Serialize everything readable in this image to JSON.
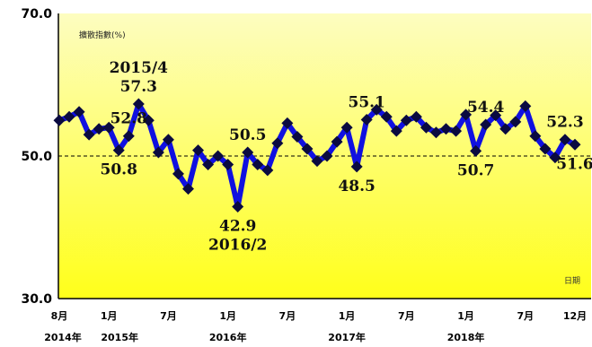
{
  "chart_data": {
    "type": "line",
    "ylabel": "擴散指數(%)",
    "corner_label": "日期",
    "ylim": [
      30,
      70
    ],
    "yticks": [
      "30.0",
      "50.0",
      "70.0"
    ],
    "reference_line": 50,
    "reference_label": "50.0",
    "grid": false,
    "colors": {
      "plot_background_top": "#fdfdc0",
      "plot_background_bottom": "#ffff1a",
      "line": "#1010e0",
      "marker": "#0a0a40",
      "reference_line": "#000000"
    },
    "x": [
      "2014/8",
      "2014/9",
      "2014/10",
      "2014/11",
      "2014/12",
      "2015/1",
      "2015/2",
      "2015/3",
      "2015/4",
      "2015/5",
      "2015/6",
      "2015/7",
      "2015/8",
      "2015/9",
      "2015/10",
      "2015/11",
      "2015/12",
      "2016/1",
      "2016/2",
      "2016/3",
      "2016/4",
      "2016/5",
      "2016/6",
      "2016/7",
      "2016/8",
      "2016/9",
      "2016/10",
      "2016/11",
      "2016/12",
      "2017/1",
      "2017/2",
      "2017/3",
      "2017/4",
      "2017/5",
      "2017/6",
      "2017/7",
      "2017/8",
      "2017/9",
      "2017/10",
      "2017/11",
      "2017/12",
      "2018/1",
      "2018/2",
      "2018/3",
      "2018/4",
      "2018/5",
      "2018/6",
      "2018/7",
      "2018/8",
      "2018/9",
      "2018/10",
      "2018/11",
      "2018/12"
    ],
    "values": [
      55.0,
      55.5,
      56.2,
      53.0,
      53.8,
      54.0,
      50.8,
      52.8,
      57.3,
      55.0,
      50.5,
      52.3,
      47.5,
      45.4,
      50.8,
      48.8,
      50.0,
      48.8,
      42.9,
      50.5,
      48.8,
      48.0,
      51.8,
      54.6,
      52.7,
      51.0,
      49.3,
      50.0,
      52.0,
      54.0,
      48.5,
      55.1,
      56.5,
      55.5,
      53.5,
      55.0,
      55.5,
      54.0,
      53.3,
      53.8,
      53.5,
      55.8,
      50.7,
      54.4,
      55.7,
      53.8,
      54.8,
      57.0,
      52.8,
      51.0,
      49.8,
      52.3,
      51.6
    ],
    "month_ticks": [
      {
        "x": "2014/8",
        "label": "8月"
      },
      {
        "x": "2015/1",
        "label": "1月"
      },
      {
        "x": "2015/7",
        "label": "7月"
      },
      {
        "x": "2016/1",
        "label": "1月"
      },
      {
        "x": "2016/7",
        "label": "7月"
      },
      {
        "x": "2017/1",
        "label": "1月"
      },
      {
        "x": "2017/7",
        "label": "7月"
      },
      {
        "x": "2018/1",
        "label": "1月"
      },
      {
        "x": "2018/7",
        "label": "7月"
      },
      {
        "x": "2018/12",
        "label": "12月"
      }
    ],
    "year_ticks": [
      {
        "x": "2014/8",
        "label": "2014年"
      },
      {
        "x": "2015/1",
        "label": "2015年"
      },
      {
        "x": "2016/1",
        "label": "2016年"
      },
      {
        "x": "2017/1",
        "label": "2017年"
      },
      {
        "x": "2018/1",
        "label": "2018年"
      }
    ],
    "annotations": [
      {
        "x": "2015/4",
        "value": 57.3,
        "lines": [
          "2015/4",
          "57.3"
        ],
        "position": "above"
      },
      {
        "x": "2015/3",
        "value": 52.8,
        "lines": [
          "52.8"
        ],
        "position": "above"
      },
      {
        "x": "2015/2",
        "value": 50.8,
        "lines": [
          "50.8"
        ],
        "position": "below"
      },
      {
        "x": "2016/3",
        "value": 50.5,
        "lines": [
          "50.5"
        ],
        "position": "above"
      },
      {
        "x": "2016/2",
        "value": 42.9,
        "lines": [
          "42.9",
          "2016/2"
        ],
        "position": "below"
      },
      {
        "x": "2017/3",
        "value": 55.1,
        "lines": [
          "55.1"
        ],
        "position": "above"
      },
      {
        "x": "2017/2",
        "value": 48.5,
        "lines": [
          "48.5"
        ],
        "position": "below"
      },
      {
        "x": "2018/3",
        "value": 54.4,
        "lines": [
          "54.4"
        ],
        "position": "above"
      },
      {
        "x": "2018/2",
        "value": 50.7,
        "lines": [
          "50.7"
        ],
        "position": "below"
      },
      {
        "x": "2018/11",
        "value": 52.3,
        "lines": [
          "52.3"
        ],
        "position": "above"
      },
      {
        "x": "2018/12",
        "value": 51.6,
        "lines": [
          "51.6"
        ],
        "position": "below"
      }
    ]
  }
}
